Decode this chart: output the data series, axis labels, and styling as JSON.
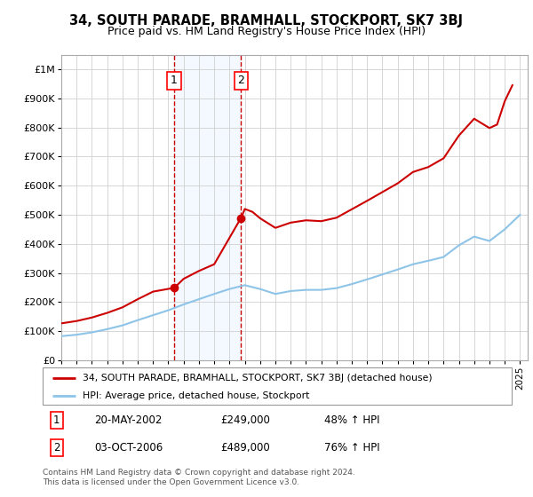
{
  "title": "34, SOUTH PARADE, BRAMHALL, STOCKPORT, SK7 3BJ",
  "subtitle": "Price paid vs. HM Land Registry's House Price Index (HPI)",
  "hpi_label": "HPI: Average price, detached house, Stockport",
  "property_label": "34, SOUTH PARADE, BRAMHALL, STOCKPORT, SK7 3BJ (detached house)",
  "footer": "Contains HM Land Registry data © Crown copyright and database right 2024.\nThis data is licensed under the Open Government Licence v3.0.",
  "transactions": [
    {
      "id": 1,
      "date": "20-MAY-2002",
      "price": 249000,
      "hpi_pct": "48% ↑ HPI",
      "x_year": 2002.38
    },
    {
      "id": 2,
      "date": "03-OCT-2006",
      "price": 489000,
      "hpi_pct": "76% ↑ HPI",
      "x_year": 2006.75
    }
  ],
  "hpi_color": "#8ec4e8",
  "price_color": "#cc0000",
  "marker_color": "#cc0000",
  "shade_color": "#ddeeff",
  "vline_color": "#cc0000",
  "ylim": [
    0,
    1050000
  ],
  "xlim_start": 1995,
  "xlim_end": 2025.5,
  "yticks": [
    0,
    100000,
    200000,
    300000,
    400000,
    500000,
    600000,
    700000,
    800000,
    900000,
    1000000
  ],
  "ytick_labels": [
    "£0",
    "£100K",
    "£200K",
    "£300K",
    "£400K",
    "£500K",
    "£600K",
    "£700K",
    "£800K",
    "£900K",
    "£1M"
  ],
  "xticks": [
    1995,
    1996,
    1997,
    1998,
    1999,
    2000,
    2001,
    2002,
    2003,
    2004,
    2005,
    2006,
    2007,
    2008,
    2009,
    2010,
    2011,
    2012,
    2013,
    2014,
    2015,
    2016,
    2017,
    2018,
    2019,
    2020,
    2021,
    2022,
    2023,
    2024,
    2025
  ],
  "hpi_years": [
    1995,
    1996,
    1997,
    1998,
    1999,
    2000,
    2001,
    2002,
    2003,
    2004,
    2005,
    2006,
    2007,
    2008,
    2009,
    2010,
    2011,
    2012,
    2013,
    2014,
    2015,
    2016,
    2017,
    2018,
    2019,
    2020,
    2021,
    2022,
    2023,
    2024,
    2025
  ],
  "hpi_values": [
    83000,
    88000,
    96000,
    107000,
    120000,
    138000,
    155000,
    172000,
    192000,
    210000,
    228000,
    245000,
    258000,
    245000,
    228000,
    238000,
    242000,
    242000,
    248000,
    262000,
    278000,
    295000,
    312000,
    330000,
    342000,
    355000,
    395000,
    425000,
    410000,
    450000,
    500000
  ],
  "prop_years": [
    1995.0,
    1996.0,
    1997.0,
    1998.0,
    1999.0,
    2000.0,
    2001.0,
    2002.38,
    2002.39,
    2003.0,
    2004.0,
    2005.0,
    2006.75,
    2006.76,
    2007.0,
    2007.5,
    2008.0,
    2009.0,
    2010.0,
    2011.0,
    2012.0,
    2013.0,
    2014.0,
    2015.0,
    2016.0,
    2017.0,
    2018.0,
    2019.0,
    2020.0,
    2021.0,
    2022.0,
    2023.0,
    2023.5,
    2024.0,
    2024.5
  ],
  "prop_values": [
    127000,
    135000,
    147000,
    163000,
    182000,
    210000,
    236000,
    249000,
    249000,
    280000,
    307000,
    330000,
    489000,
    489000,
    520000,
    510000,
    488000,
    455000,
    473000,
    481000,
    478000,
    490000,
    519000,
    548000,
    578000,
    608000,
    647000,
    664000,
    694000,
    772000,
    830000,
    798000,
    810000,
    890000,
    945000
  ]
}
